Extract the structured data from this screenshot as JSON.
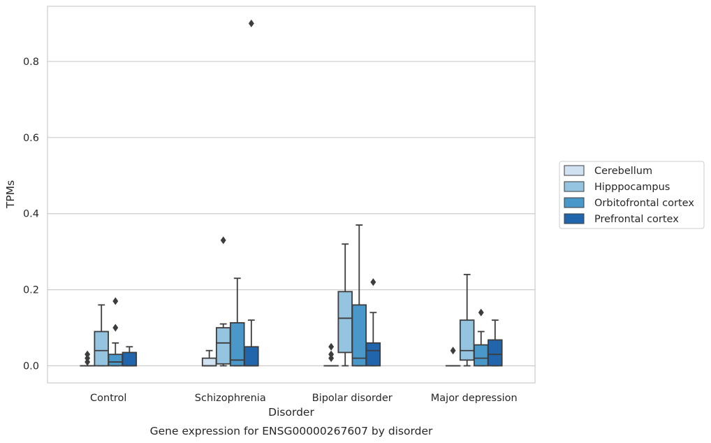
{
  "chart_data": {
    "type": "box",
    "title": "",
    "caption": "Gene expression for ENSG00000267607 by disorder",
    "xlabel": "Disorder",
    "ylabel": "TPMs",
    "ylim": [
      -0.045,
      0.945
    ],
    "yticks": [
      0.0,
      0.2,
      0.4,
      0.6,
      0.8
    ],
    "ytick_labels": [
      "0.0",
      "0.2",
      "0.4",
      "0.6",
      "0.8"
    ],
    "grid": "horizontal",
    "legend_position": "right",
    "categories": [
      "Control",
      "Schizophrenia",
      "Bipolar disorder",
      "Major depression"
    ],
    "series": [
      {
        "name": "Cerebellum",
        "color": "#d0e1f2",
        "boxes": [
          {
            "whislo": 0.0,
            "q1": 0.0,
            "med": 0.0,
            "q3": 0.0,
            "whishi": 0.0,
            "fliers": [
              0.01,
              0.02,
              0.03
            ]
          },
          {
            "whislo": 0.0,
            "q1": 0.0,
            "med": 0.0,
            "q3": 0.02,
            "whishi": 0.04,
            "fliers": []
          },
          {
            "whislo": 0.0,
            "q1": 0.0,
            "med": 0.0,
            "q3": 0.0,
            "whishi": 0.0,
            "fliers": [
              0.02,
              0.03,
              0.05
            ]
          },
          {
            "whislo": 0.0,
            "q1": 0.0,
            "med": 0.0,
            "q3": 0.0,
            "whishi": 0.0,
            "fliers": [
              0.04
            ]
          }
        ]
      },
      {
        "name": "Hipppocampus",
        "color": "#94c4df",
        "boxes": [
          {
            "whislo": 0.0,
            "q1": 0.0,
            "med": 0.04,
            "q3": 0.09,
            "whishi": 0.16,
            "fliers": []
          },
          {
            "whislo": 0.0,
            "q1": 0.005,
            "med": 0.06,
            "q3": 0.1,
            "whishi": 0.11,
            "fliers": [
              0.33
            ]
          },
          {
            "whislo": 0.0,
            "q1": 0.035,
            "med": 0.125,
            "q3": 0.195,
            "whishi": 0.32,
            "fliers": []
          },
          {
            "whislo": 0.0,
            "q1": 0.015,
            "med": 0.04,
            "q3": 0.12,
            "whishi": 0.24,
            "fliers": []
          }
        ]
      },
      {
        "name": "Orbitofrontal cortex",
        "color": "#4a98c9",
        "boxes": [
          {
            "whislo": 0.0,
            "q1": 0.0,
            "med": 0.01,
            "q3": 0.03,
            "whishi": 0.06,
            "fliers": [
              0.1,
              0.17
            ]
          },
          {
            "whislo": 0.0,
            "q1": 0.0,
            "med": 0.015,
            "q3": 0.113,
            "whishi": 0.23,
            "fliers": []
          },
          {
            "whislo": 0.0,
            "q1": 0.0,
            "med": 0.02,
            "q3": 0.16,
            "whishi": 0.37,
            "fliers": []
          },
          {
            "whislo": 0.0,
            "q1": 0.0,
            "med": 0.02,
            "q3": 0.055,
            "whishi": 0.09,
            "fliers": [
              0.14
            ]
          }
        ]
      },
      {
        "name": "Prefrontal cortex",
        "color": "#2166ac",
        "boxes": [
          {
            "whislo": 0.0,
            "q1": 0.0,
            "med": 0.0,
            "q3": 0.035,
            "whishi": 0.05,
            "fliers": []
          },
          {
            "whislo": 0.0,
            "q1": 0.0,
            "med": 0.0,
            "q3": 0.05,
            "whishi": 0.12,
            "fliers": [
              0.9
            ]
          },
          {
            "whislo": 0.0,
            "q1": 0.0,
            "med": 0.04,
            "q3": 0.06,
            "whishi": 0.14,
            "fliers": [
              0.22
            ]
          },
          {
            "whislo": 0.0,
            "q1": 0.0,
            "med": 0.03,
            "q3": 0.068,
            "whishi": 0.12,
            "fliers": []
          }
        ]
      }
    ]
  }
}
